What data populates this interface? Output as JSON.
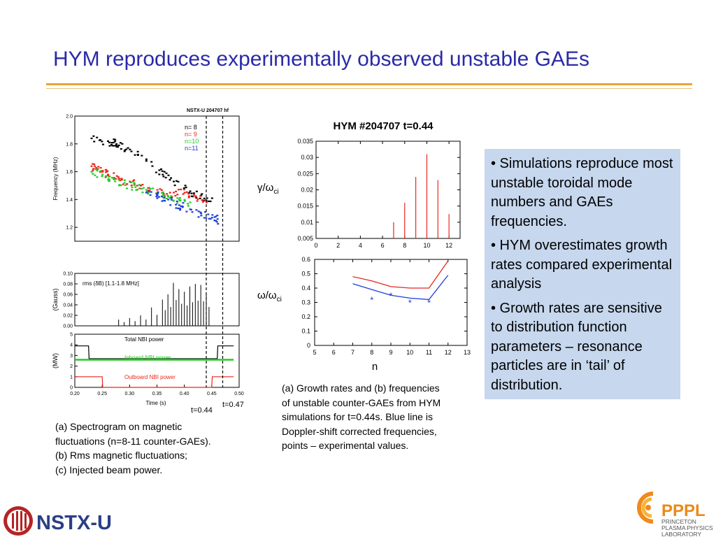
{
  "slide": {
    "title": "HYM reproduces experimentally observed unstable GAEs",
    "left_caption": [
      "(a) Spectrogram on magnetic",
      "fluctuations (n=8-11 counter-GAEs).",
      "(b) Rms magnetic fluctuations;",
      "(c) Injected beam power."
    ],
    "mid_caption": [
      "(a) Growth rates and (b) frequencies",
      "of unstable counter-GAEs from HYM",
      "simulations for t=0.44s. Blue line is",
      "Doppler-shift corrected frequencies,",
      "points – experimental values."
    ],
    "bullets": [
      "• Simulations reproduce most unstable toroidal mode numbers and GAEs frequencies.",
      "• HYM overestimates growth rates compared experimental analysis",
      "•  Growth rates are sensitive to distribution function parameters – resonance particles are in ‘tail’ of distribution."
    ],
    "t044": "t=0.44",
    "t047": "t=0.47",
    "logo_left": "NSTX-U",
    "logo_right": "PPPL",
    "logo_right_sub": [
      "PRINCETON",
      "PLASMA PHYSICS",
      "LABORATORY"
    ]
  },
  "chart_data": [
    {
      "type": "scatter",
      "panel": "spectrogram",
      "title": "NSTX-U  204707 hf",
      "ylabel": "Frequency (MHz)",
      "ylim": [
        1.1,
        2.0
      ],
      "xlim": [
        0.2,
        0.5
      ],
      "yticks": [
        "2.0",
        "1.8",
        "1.6",
        "1.4",
        "1.2"
      ],
      "legend": [
        {
          "label": "n=  8",
          "color": "#000000"
        },
        {
          "label": "n=  9",
          "color": "#e8281e"
        },
        {
          "label": "n=10",
          "color": "#22cc22"
        },
        {
          "label": "n=11",
          "color": "#1f3fd8"
        }
      ],
      "series": [
        {
          "name": "n=  8",
          "x": [
            0.23,
            0.26,
            0.27,
            0.28,
            0.3,
            0.33,
            0.36,
            0.38,
            0.41,
            0.43,
            0.45
          ],
          "y": [
            1.84,
            1.82,
            1.81,
            1.79,
            1.76,
            1.69,
            1.58,
            1.53,
            1.46,
            1.43,
            1.41
          ]
        },
        {
          "name": "n=  9",
          "x": [
            0.23,
            0.24,
            0.25,
            0.26,
            0.28,
            0.3,
            0.32,
            0.35,
            0.38,
            0.4,
            0.42,
            0.44
          ],
          "y": [
            1.64,
            1.62,
            1.6,
            1.58,
            1.55,
            1.53,
            1.5,
            1.47,
            1.45,
            1.45,
            1.42,
            1.38
          ]
        },
        {
          "name": "n=10",
          "x": [
            0.23,
            0.25,
            0.27,
            0.29,
            0.31,
            0.33,
            0.35,
            0.37,
            0.39,
            0.41
          ],
          "y": [
            1.6,
            1.58,
            1.55,
            1.52,
            1.49,
            1.47,
            1.45,
            1.42,
            1.4,
            1.38
          ]
        },
        {
          "name": "n=11",
          "x": [
            0.33,
            0.35,
            0.37,
            0.39,
            0.41,
            0.43,
            0.45,
            0.46
          ],
          "y": [
            1.45,
            1.43,
            1.4,
            1.36,
            1.33,
            1.3,
            1.27,
            1.26
          ]
        }
      ]
    },
    {
      "type": "line",
      "panel": "rms",
      "annotation": "rms (δB) [1.1-1.8 MHz]",
      "ylabel": "(Gauss)",
      "ylim": [
        0,
        0.1
      ],
      "yticks": [
        "0.10",
        "0.08",
        "0.06",
        "0.04",
        "0.02",
        "0.00"
      ],
      "series": [
        {
          "name": "",
          "x": [
            0.28,
            0.3,
            0.32,
            0.34,
            0.36,
            0.37,
            0.38,
            0.39,
            0.4,
            0.41,
            0.42,
            0.43,
            0.44,
            0.45
          ],
          "y": [
            0.012,
            0.015,
            0.02,
            0.035,
            0.05,
            0.06,
            0.082,
            0.07,
            0.065,
            0.075,
            0.08,
            0.078,
            0.06,
            0.0
          ]
        }
      ]
    },
    {
      "type": "line",
      "panel": "nbi",
      "ylabel": "(MW)",
      "xlabel": "Time (s)",
      "ylim": [
        0,
        5
      ],
      "xticks": [
        "0.20",
        "0.25",
        "0.30",
        "0.35",
        "0.40",
        "0.45",
        "0.50"
      ],
      "yticks": [
        "5",
        "4",
        "3",
        "2",
        "1",
        "0"
      ],
      "series": [
        {
          "name": "Total NBI power",
          "x": [
            0.2,
            0.225,
            0.226,
            0.46,
            0.461,
            0.49
          ],
          "y": [
            3.9,
            3.9,
            2.7,
            2.7,
            3.9,
            3.9
          ]
        },
        {
          "name": "Inboard NBI power",
          "x": [
            0.2,
            0.49
          ],
          "y": [
            2.6,
            2.6
          ]
        },
        {
          "name": "Outboard NBI power",
          "x": [
            0.2,
            0.25,
            0.251,
            0.45,
            0.451,
            0.49
          ],
          "y": [
            1.0,
            1.0,
            0.0,
            0.0,
            1.0,
            1.0
          ]
        }
      ]
    },
    {
      "type": "bar",
      "panel": "growth",
      "title": "HYM #204707 t=0.44",
      "ylabel": "γ/ω",
      "ylabel_sub": "ci",
      "xlim": [
        0,
        13
      ],
      "ylim": [
        0.005,
        0.035
      ],
      "xticks": [
        "0",
        "2",
        "4",
        "6",
        "8",
        "10",
        "12"
      ],
      "yticks": [
        "0.035",
        "0.03",
        "0.025",
        "0.02",
        "0.015",
        "0.01",
        "0.005"
      ],
      "x": [
        7,
        8,
        9,
        10,
        11,
        12
      ],
      "values": [
        0.01,
        0.016,
        0.024,
        0.031,
        0.023,
        0.0125
      ]
    },
    {
      "type": "line",
      "panel": "frequency",
      "ylabel": "ω/ω",
      "ylabel_sub": "ci",
      "xlabel": "n",
      "xlim": [
        5,
        13
      ],
      "ylim": [
        0,
        0.6
      ],
      "xticks": [
        "5",
        "6",
        "7",
        "8",
        "9",
        "10",
        "11",
        "12",
        "13"
      ],
      "yticks": [
        "0.6",
        "0.5",
        "0.4",
        "0.3",
        "0.2",
        "0.1",
        "0"
      ],
      "series": [
        {
          "name": "",
          "color": "#e8281e",
          "x": [
            7,
            8,
            9,
            10,
            11,
            12
          ],
          "y": [
            0.48,
            0.45,
            0.41,
            0.4,
            0.4,
            0.59
          ]
        },
        {
          "name": "",
          "color": "#1f3fd8",
          "x": [
            7,
            8,
            9,
            10,
            11,
            12
          ],
          "y": [
            0.43,
            0.39,
            0.35,
            0.33,
            0.32,
            0.49
          ]
        },
        {
          "name": "",
          "type": "scatter",
          "color": "#1f3fd8",
          "x": [
            8,
            9,
            10,
            11
          ],
          "y": [
            0.32,
            0.35,
            0.3,
            0.3
          ]
        }
      ]
    }
  ]
}
